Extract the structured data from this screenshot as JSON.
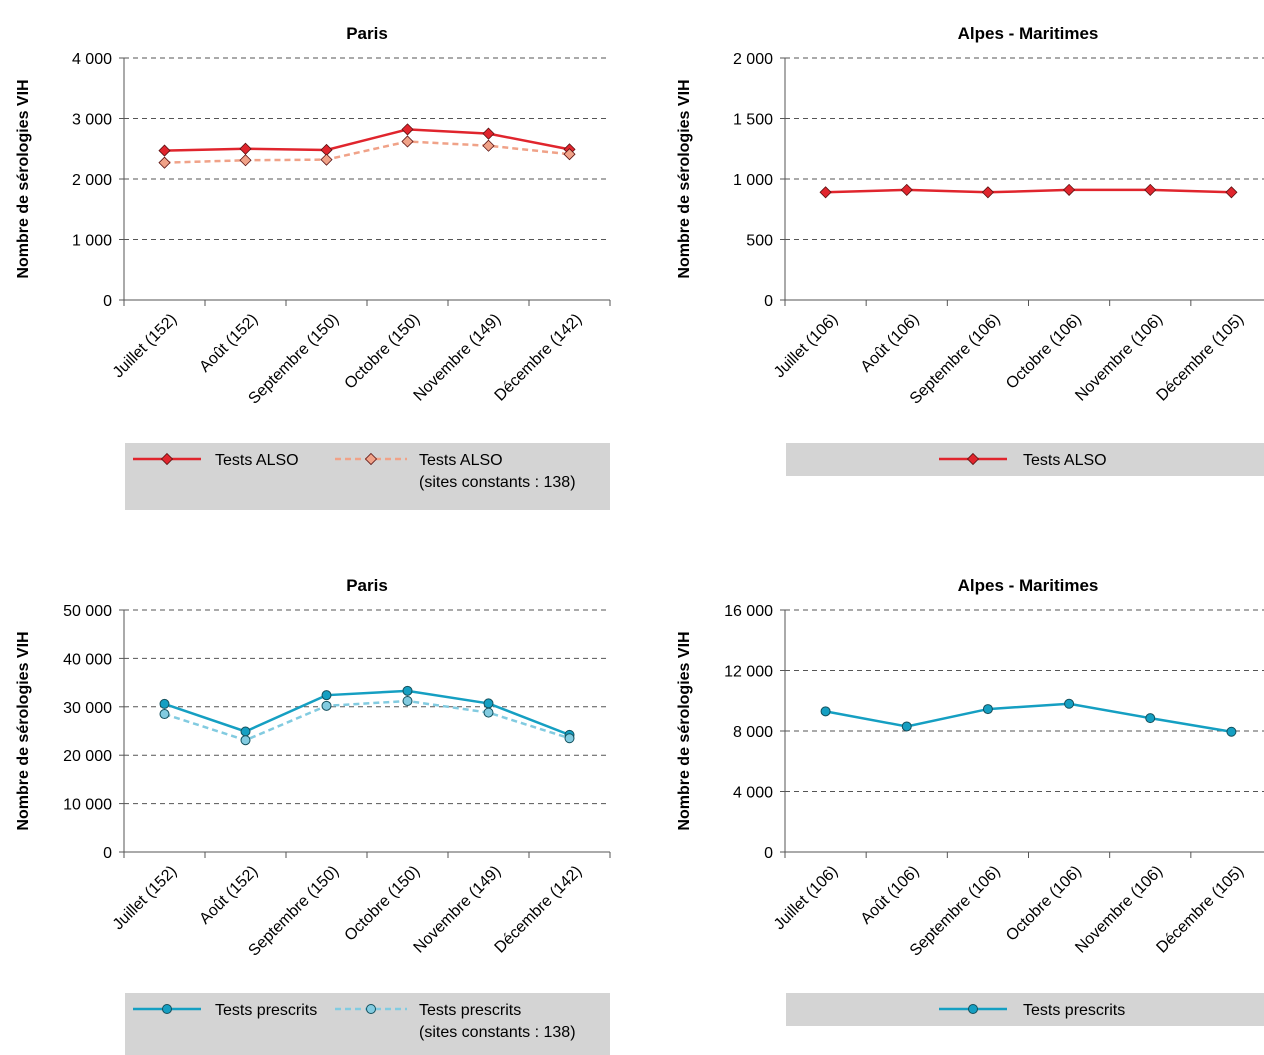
{
  "chart_data": [
    {
      "type": "line",
      "title": "Paris",
      "ylabel": "Nombre de sérologies VIH",
      "ylim": [
        0,
        4000
      ],
      "yticks": [
        0,
        1000,
        2000,
        3000,
        4000
      ],
      "ytick_labels": [
        "0",
        "1 000",
        "2 000",
        "3 000",
        "4 000"
      ],
      "grid": true,
      "categories": [
        "Juillet (152)",
        "Août (152)",
        "Septembre (150)",
        "Octobre (150)",
        "Novembre (149)",
        "Décembre (142)"
      ],
      "series": [
        {
          "name": "Tests ALSO",
          "values": [
            2470,
            2500,
            2480,
            2820,
            2750,
            2490
          ],
          "color": "#e0252d",
          "dashed": false,
          "marker": "diamond"
        },
        {
          "name": "Tests ALSO",
          "name_line2": "(sites constants : 138)",
          "values": [
            2270,
            2310,
            2320,
            2620,
            2550,
            2410
          ],
          "color": "#f0a288",
          "dashed": true,
          "marker": "diamond"
        }
      ]
    },
    {
      "type": "line",
      "title": "Alpes - Maritimes",
      "ylabel": "Nombre de sérologies VIH",
      "ylim": [
        0,
        2000
      ],
      "yticks": [
        0,
        500,
        1000,
        1500,
        2000
      ],
      "ytick_labels": [
        "0",
        "500",
        "1 000",
        "1 500",
        "2 000"
      ],
      "grid": true,
      "categories": [
        "Juillet (106)",
        "Août (106)",
        "Septembre (106)",
        "Octobre (106)",
        "Novembre (106)",
        "Décembre (105)"
      ],
      "series": [
        {
          "name": "Tests ALSO",
          "values": [
            890,
            910,
            890,
            910,
            910,
            890
          ],
          "color": "#e0252d",
          "dashed": false,
          "marker": "diamond"
        }
      ]
    },
    {
      "type": "line",
      "title": "Paris",
      "ylabel": "Nombre de sérologies VIH",
      "ylim": [
        0,
        50000
      ],
      "yticks": [
        0,
        10000,
        20000,
        30000,
        40000,
        50000
      ],
      "ytick_labels": [
        "0",
        "10 000",
        "20 000",
        "30 000",
        "40 000",
        "50 000"
      ],
      "grid": true,
      "categories": [
        "Juillet (152)",
        "Août (152)",
        "Septembre (150)",
        "Octobre (150)",
        "Novembre (149)",
        "Décembre (142)"
      ],
      "series": [
        {
          "name": "Tests prescrits",
          "values": [
            30600,
            24900,
            32400,
            33300,
            30700,
            24200
          ],
          "color": "#159fc2",
          "dashed": false,
          "marker": "circle"
        },
        {
          "name": "Tests prescrits",
          "name_line2": "(sites constants : 138)",
          "values": [
            28500,
            23100,
            30200,
            31200,
            28800,
            23500
          ],
          "color": "#82cbe0",
          "dashed": true,
          "marker": "circle"
        }
      ]
    },
    {
      "type": "line",
      "title": "Alpes - Maritimes",
      "ylabel": "Nombre de sérologies VIH",
      "ylim": [
        0,
        16000
      ],
      "yticks": [
        0,
        4000,
        8000,
        12000,
        16000
      ],
      "ytick_labels": [
        "0",
        "4 000",
        "8 000",
        "12 000",
        "16 000"
      ],
      "grid": true,
      "categories": [
        "Juillet (106)",
        "Août (106)",
        "Septembre (106)",
        "Octobre (106)",
        "Novembre (106)",
        "Décembre (105)"
      ],
      "series": [
        {
          "name": "Tests prescrits",
          "values": [
            9300,
            8300,
            9450,
            9800,
            8850,
            7950
          ],
          "color": "#159fc2",
          "dashed": false,
          "marker": "circle"
        }
      ]
    }
  ]
}
